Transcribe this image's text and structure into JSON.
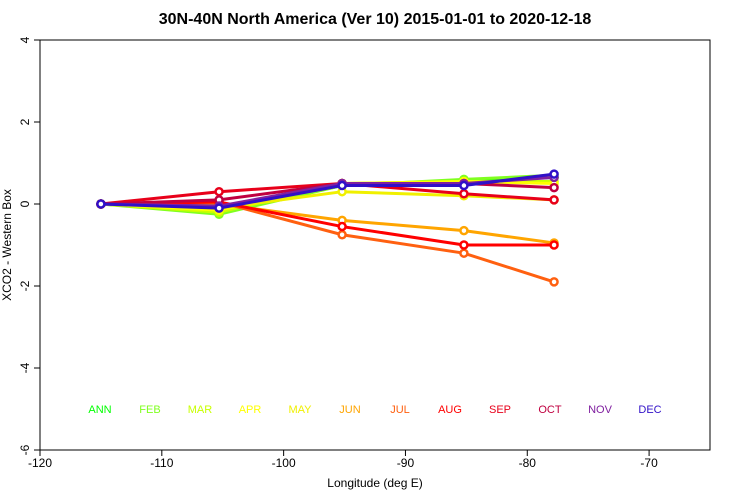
{
  "chart_data": {
    "type": "line",
    "title": "30N-40N North America (Ver 10)   2015-01-01 to 2020-12-18",
    "x_label": "Longitude (deg E)",
    "y_label": "XCO2 - Western Box",
    "x": [
      -115,
      -105.3,
      -95.2,
      -85.2,
      -77.8
    ],
    "xlim": [
      -120,
      -65
    ],
    "xticks": [
      -120,
      -110,
      -100,
      -90,
      -80,
      -70
    ],
    "ylim": [
      -6,
      4
    ],
    "yticks": [
      -6,
      -4,
      -2,
      0,
      2,
      4
    ],
    "series": [
      {
        "name": "ANN",
        "color": "#00ff00",
        "values": [
          0,
          -0.2,
          0.45,
          0.55,
          0.65
        ]
      },
      {
        "name": "FEB",
        "color": "#80ff20",
        "values": [
          0,
          -0.25,
          0.45,
          0.6,
          0.7
        ]
      },
      {
        "name": "MAR",
        "color": "#c8ff00",
        "values": [
          0,
          -0.2,
          0.5,
          0.55,
          0.55
        ]
      },
      {
        "name": "APR",
        "color": "#ffff00",
        "values": [
          0,
          -0.15,
          0.5,
          0.55,
          0.5
        ]
      },
      {
        "name": "MAY",
        "color": "#f0f000",
        "values": [
          0,
          -0.1,
          0.3,
          0.2,
          0.1
        ]
      },
      {
        "name": "JUN",
        "color": "#ffa500",
        "values": [
          0,
          0,
          -0.4,
          -0.65,
          -0.95
        ]
      },
      {
        "name": "JUL",
        "color": "#ff6010",
        "values": [
          0,
          0.05,
          -0.75,
          -1.2,
          -1.9
        ]
      },
      {
        "name": "AUG",
        "color": "#ff0000",
        "values": [
          0,
          0.05,
          -0.55,
          -1.0,
          -1.0
        ]
      },
      {
        "name": "SEP",
        "color": "#e8001a",
        "values": [
          0,
          0.3,
          0.5,
          0.25,
          0.1
        ]
      },
      {
        "name": "OCT",
        "color": "#c00040",
        "values": [
          0,
          0.1,
          0.5,
          0.5,
          0.4
        ]
      },
      {
        "name": "NOV",
        "color": "#8020a0",
        "values": [
          0,
          -0.05,
          0.5,
          0.5,
          0.65
        ]
      },
      {
        "name": "DEC",
        "color": "#3010c8",
        "values": [
          0,
          -0.1,
          0.45,
          0.45,
          0.73
        ]
      }
    ]
  }
}
